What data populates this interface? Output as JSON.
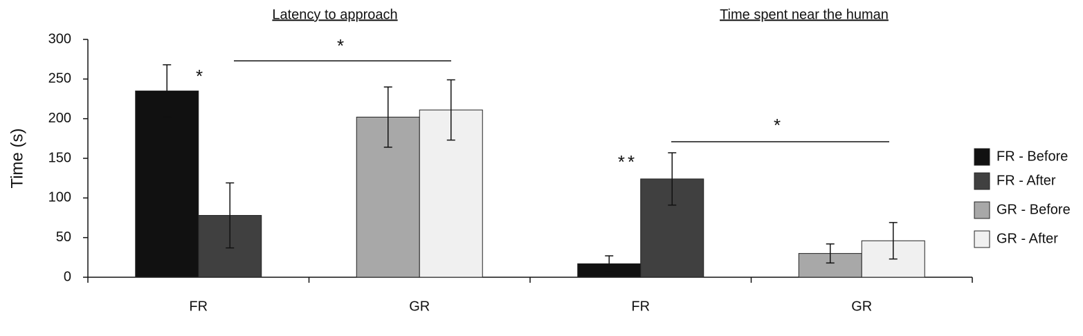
{
  "chart_data": {
    "type": "bar",
    "panel_titles": [
      "Latency to approach",
      "Time spent near the human"
    ],
    "y_label": "Time (s)",
    "categories": [
      "FR",
      "GR",
      "FR",
      "GR"
    ],
    "series": [
      {
        "name": "FR - Before",
        "color": "#111111",
        "values": [
          235,
          null,
          17,
          null
        ],
        "errors": [
          33,
          null,
          10,
          null
        ]
      },
      {
        "name": "FR - After",
        "color": "#404040",
        "values": [
          78,
          null,
          124,
          null
        ],
        "errors": [
          41,
          null,
          33,
          null
        ]
      },
      {
        "name": "GR - Before",
        "color": "#a8a8a8",
        "values": [
          null,
          202,
          null,
          30
        ],
        "errors": [
          null,
          38,
          null,
          12
        ]
      },
      {
        "name": "GR - After",
        "color": "#f0f0f0",
        "values": [
          null,
          211,
          null,
          46
        ],
        "errors": [
          null,
          38,
          null,
          23
        ]
      }
    ],
    "annotations": [
      "*",
      "*",
      "**",
      "*"
    ],
    "ylim": [
      0,
      300
    ],
    "yticks": [
      0,
      50,
      100,
      150,
      200,
      250,
      300
    ],
    "legend": "right"
  }
}
